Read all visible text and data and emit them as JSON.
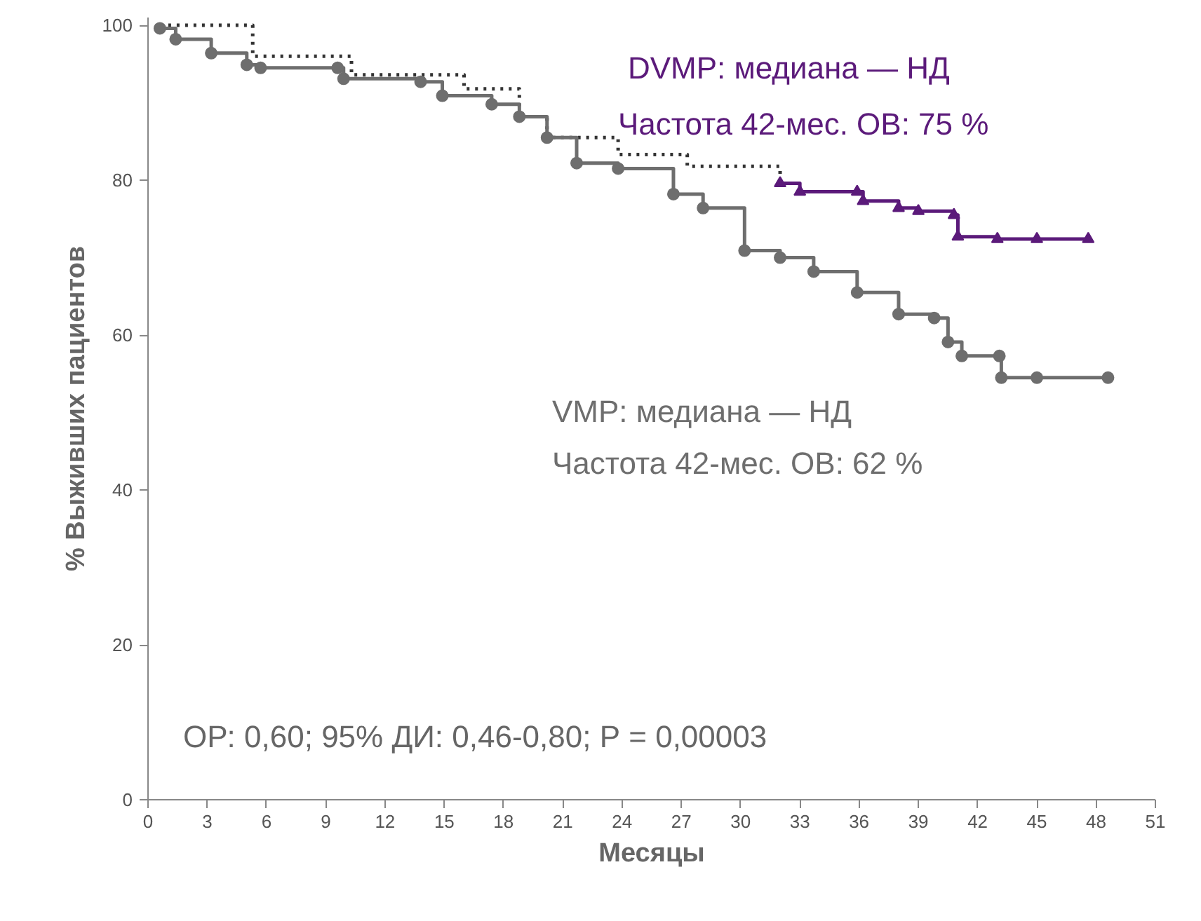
{
  "chart_data": {
    "type": "step",
    "xlabel": "Месяцы",
    "ylabel": "% Выживших пациентов",
    "xlim": [
      0,
      51
    ],
    "ylim": [
      0,
      101
    ],
    "xticks": [
      0,
      3,
      6,
      9,
      12,
      15,
      18,
      21,
      24,
      27,
      30,
      33,
      36,
      39,
      42,
      45,
      48,
      51
    ],
    "yticks": [
      0,
      20,
      40,
      60,
      80,
      100
    ],
    "grid": false,
    "series": [
      {
        "color": "#333333",
        "line_style": "dotted",
        "marker": "none",
        "x": [
          0.6,
          5.3,
          10.3,
          16,
          18.8,
          20.2,
          23.8,
          27.3,
          32
        ],
        "values": [
          100,
          96,
          93.6,
          91.8,
          88.2,
          85.5,
          83.3,
          81.8,
          80
        ]
      },
      {
        "name": "DVMP: медиана — НД",
        "color": "#5b1a7a",
        "line_style": "solid",
        "marker": "triangle",
        "x": [
          32,
          33,
          35.9,
          36.2,
          38,
          39,
          40.8,
          41,
          43,
          45,
          47.6
        ],
        "values": [
          79.6,
          78.5,
          78.5,
          77.3,
          76.4,
          76,
          75.5,
          72.7,
          72.4,
          72.4,
          72.4
        ]
      },
      {
        "name": "VMP: медиана — НД",
        "color": "#6e6e6e",
        "line_style": "solid",
        "marker": "circle",
        "x": [
          0.6,
          1.4,
          3.2,
          5,
          5.7,
          9.6,
          9.9,
          13.8,
          14.9,
          17.4,
          18.8,
          20.2,
          21.7,
          23.8,
          26.6,
          28.1,
          30.2,
          32,
          33.7,
          35.9,
          38,
          39.8,
          40.5,
          41.2,
          43.1,
          43.2,
          45,
          48.6
        ],
        "values": [
          99.6,
          98.2,
          96.4,
          94.9,
          94.5,
          94.5,
          93.1,
          92.7,
          90.9,
          89.8,
          88.2,
          85.5,
          82.2,
          81.5,
          78.2,
          76.4,
          70.9,
          70,
          68.2,
          65.5,
          62.7,
          62.2,
          59.1,
          57.3,
          57.3,
          54.5,
          54.5,
          54.5
        ]
      }
    ],
    "annotations": [
      "Частота 42-мес. ОВ: 75 %",
      "Частота 42-мес. ОВ: 62 %",
      "ОР: 0,60; 95% ДИ: 0,46-0,80; Р = 0,00003"
    ]
  }
}
